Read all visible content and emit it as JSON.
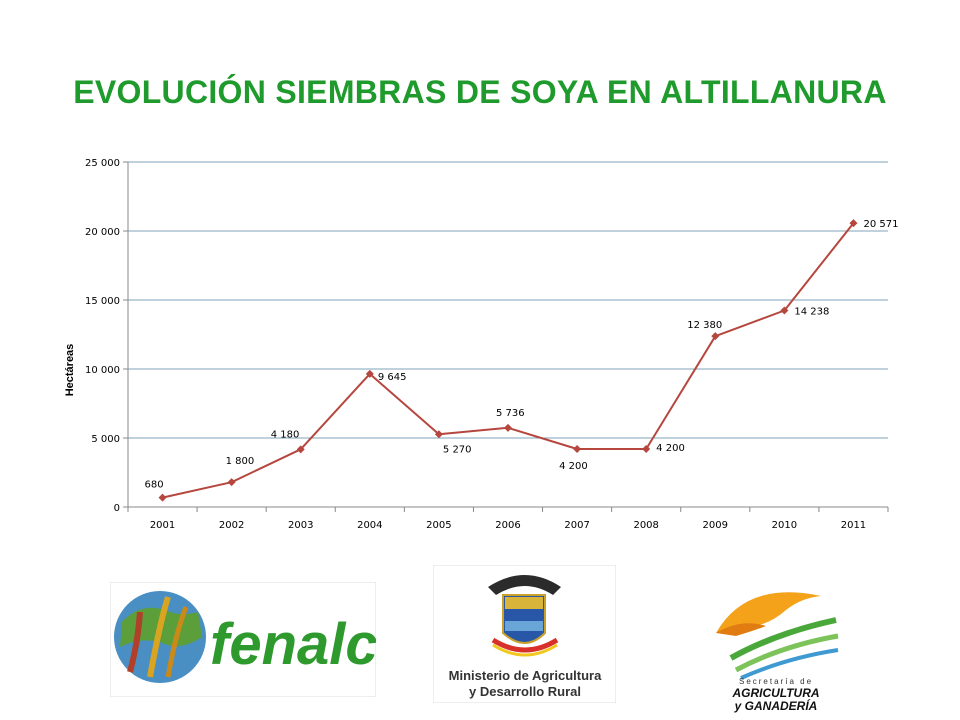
{
  "title": "EVOLUCIÓN SIEMBRAS DE SOYA EN ALTILLANURA",
  "chart_data": {
    "type": "line",
    "title": "EVOLUCIÓN SIEMBRAS DE SOYA EN ALTILLANURA",
    "xlabel": "",
    "ylabel": "Hectáreas",
    "categories": [
      "2001",
      "2002",
      "2003",
      "2004",
      "2005",
      "2006",
      "2007",
      "2008",
      "2009",
      "2010",
      "2011"
    ],
    "values": [
      680,
      1800,
      4180,
      9645,
      5270,
      5736,
      4200,
      4200,
      12380,
      14238,
      20571
    ],
    "data_labels": [
      "680",
      "1 800",
      "4 180",
      "9 645",
      "5 270",
      "5 736",
      "4 200",
      "4 200",
      "12 380",
      "14 238",
      "20 571"
    ],
    "ylim": [
      0,
      25000
    ],
    "yticks": [
      0,
      5000,
      10000,
      15000,
      20000,
      25000
    ],
    "ytick_labels": [
      "0",
      "5 000",
      "10 000",
      "15 000",
      "20 000",
      "25 000"
    ],
    "grid": true,
    "legend": "none",
    "line_color": "#b5473f",
    "grid_color": "#7fa3b8"
  },
  "logos": {
    "fenalce": {
      "text": "fenalce",
      "color": "#2e9a2e"
    },
    "ministerio": {
      "line1": "Ministerio de Agricultura",
      "line2": "y Desarrollo Rural"
    },
    "secretaria": {
      "line1": "Secretaría de",
      "line2": "AGRICULTURA",
      "line3": "y GANADERÍA"
    }
  }
}
